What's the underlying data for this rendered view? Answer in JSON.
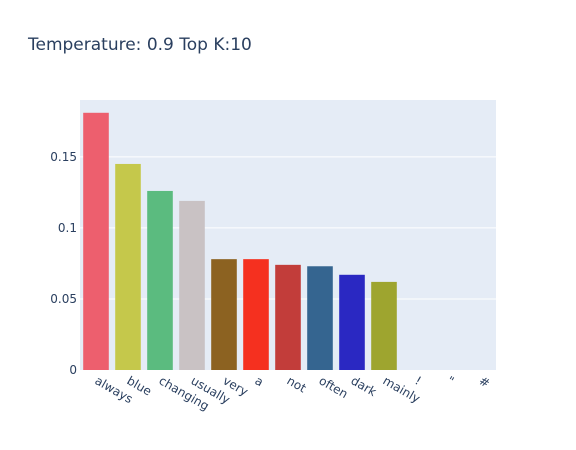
{
  "chart_data": {
    "type": "bar",
    "title": "Temperature: 0.9 Top K:10",
    "xlabel": "",
    "ylabel": "",
    "categories": [
      "always",
      "blue",
      "changing",
      "usually",
      "very",
      "a",
      "not",
      "often",
      "dark",
      "mainly",
      "!",
      "\"",
      "#"
    ],
    "values": [
      0.181,
      0.145,
      0.126,
      0.119,
      0.078,
      0.078,
      0.074,
      0.073,
      0.067,
      0.062,
      0,
      0,
      0
    ],
    "colors": [
      "#ed5f6e",
      "#c5c84b",
      "#5bbb7f",
      "#c9c2c4",
      "#8c6221",
      "#f5301f",
      "#c23d3a",
      "#356590",
      "#2a28c2",
      "#9ea52f",
      "#ed5f6e",
      "#c5c84b",
      "#5bbb7f"
    ],
    "ylim": [
      0,
      0.19
    ],
    "yticks": [
      {
        "value": 0,
        "label": "0"
      },
      {
        "value": 0.05,
        "label": "0.05"
      },
      {
        "value": 0.1,
        "label": "0.1"
      },
      {
        "value": 0.15,
        "label": "0.15"
      }
    ],
    "grid": true,
    "plot_background": "#e5ecf6",
    "text_color": "#2a3f5f"
  }
}
